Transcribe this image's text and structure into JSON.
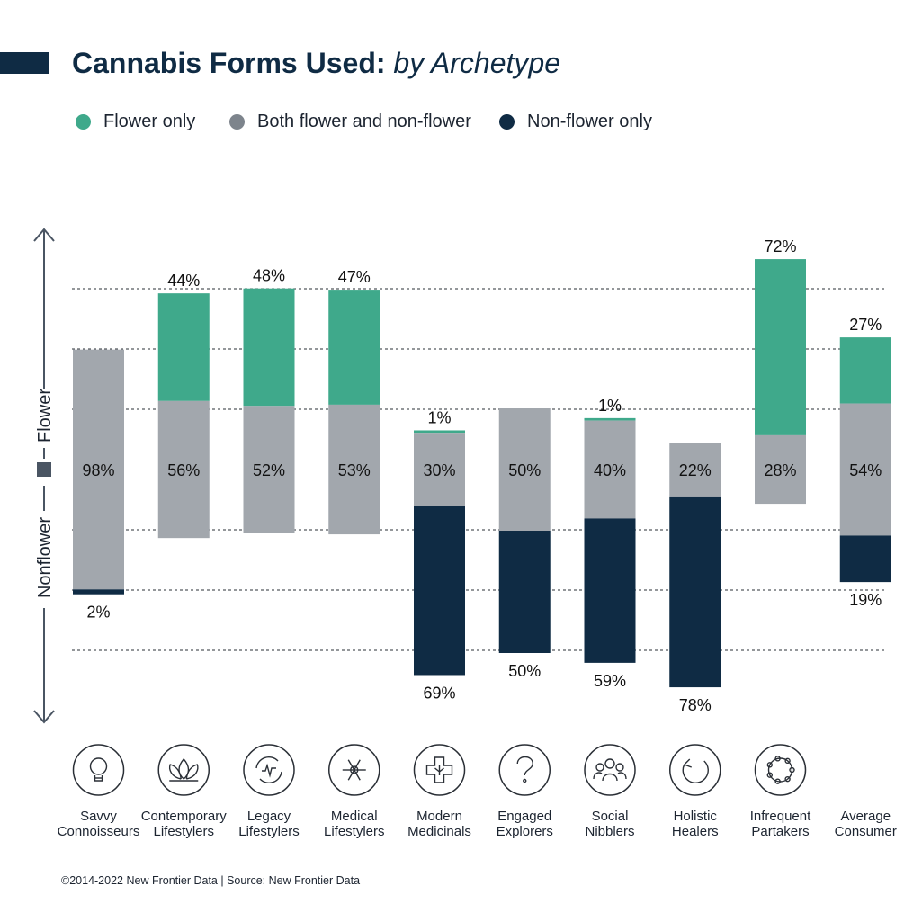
{
  "title": {
    "main": "Cannabis Forms Used:",
    "sub": "by Archetype"
  },
  "legend": [
    {
      "label": "Flower only",
      "color": "#3fa98b"
    },
    {
      "label": "Both flower and non-flower",
      "color": "#7d848c"
    },
    {
      "label": "Non-flower only",
      "color": "#0f2b44"
    }
  ],
  "axis": {
    "upper_label": "Flower",
    "lower_label": "Nonflower"
  },
  "chart_data": {
    "type": "bar",
    "layout": "diverging-stacked",
    "categories": [
      "Savvy Connoisseurs",
      "Contemporary Lifestylers",
      "Legacy Lifestylers",
      "Medical Lifestylers",
      "Modern Medicinals",
      "Engaged Explorers",
      "Social Nibblers",
      "Holistic Healers",
      "Infrequent Partakers",
      "Average Consumer"
    ],
    "category_lines": [
      [
        "Savvy",
        "Connoisseurs"
      ],
      [
        "Contemporary",
        "Lifestylers"
      ],
      [
        "Legacy",
        "Lifestylers"
      ],
      [
        "Medical",
        "Lifestylers"
      ],
      [
        "Modern",
        "Medicinals"
      ],
      [
        "Engaged",
        "Explorers"
      ],
      [
        "Social",
        "Nibblers"
      ],
      [
        "Holistic",
        "Healers"
      ],
      [
        "Infrequent",
        "Partakers"
      ],
      [
        "Average",
        "Consumer"
      ]
    ],
    "series": [
      {
        "name": "Flower only",
        "values": [
          0,
          44,
          48,
          47,
          1,
          0,
          1,
          0,
          72,
          27
        ]
      },
      {
        "name": "Both flower and non-flower",
        "values": [
          98,
          56,
          52,
          53,
          30,
          50,
          40,
          22,
          28,
          54
        ]
      },
      {
        "name": "Non-flower only",
        "values": [
          2,
          0,
          0,
          0,
          69,
          50,
          59,
          78,
          0,
          19
        ]
      }
    ],
    "labels": {
      "flower": [
        "",
        "44%",
        "48%",
        "47%",
        "1%",
        "",
        "1%",
        "",
        "72%",
        "27%"
      ],
      "both": [
        "98%",
        "56%",
        "52%",
        "53%",
        "30%",
        "50%",
        "40%",
        "22%",
        "28%",
        "54%"
      ],
      "nonflower": [
        "2%",
        "",
        "",
        "",
        "69%",
        "50%",
        "59%",
        "78%",
        "",
        "19%"
      ]
    },
    "icons": [
      "lightbulb-icon",
      "lotus-icon",
      "recycle-heart-icon",
      "caduceus-icon",
      "medical-cross-leaf-icon",
      "question-mark-icon",
      "people-group-icon",
      "circular-arrow-icon",
      "dotted-circle-icon",
      ""
    ],
    "grid": "dashed",
    "legend_position": "top-left"
  },
  "footer": "©2014-2022  New Frontier Data | Source: New Frontier Data"
}
